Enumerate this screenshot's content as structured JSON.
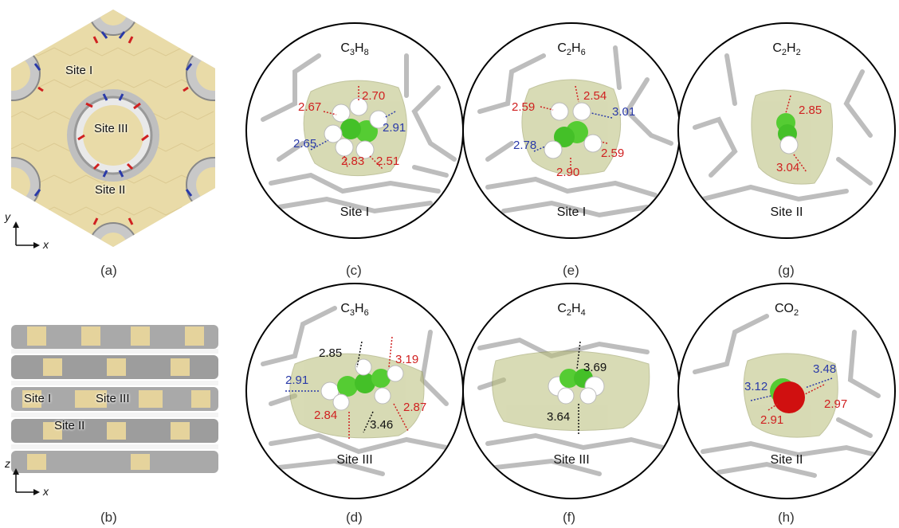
{
  "panels": {
    "a": {
      "caption": "(a)",
      "sites": [
        "Site I",
        "Site III",
        "Site II"
      ],
      "axes": {
        "vertical": "y",
        "horizontal": "x"
      }
    },
    "b": {
      "caption": "(b)",
      "sites": [
        "Site I",
        "Site III",
        "Site II"
      ],
      "axes": {
        "vertical": "z",
        "horizontal": "x"
      }
    },
    "c": {
      "caption": "(c)",
      "molecule": "C3H8",
      "site": "Site I",
      "distances": {
        "d1": "2.67",
        "d2": "2.70",
        "d3": "2.91",
        "d4": "2.65",
        "d5": "2.83",
        "d6": "2.51"
      }
    },
    "d": {
      "caption": "(d)",
      "molecule": "C3H6",
      "site": "Site III",
      "distances": {
        "d1": "2.85",
        "d2": "3.19",
        "d3": "2.91",
        "d4": "2.84",
        "d5": "3.46",
        "d6": "2.87"
      }
    },
    "e": {
      "caption": "(e)",
      "molecule": "C2H6",
      "site": "Site I",
      "distances": {
        "d1": "2.59",
        "d2": "2.54",
        "d3": "3.01",
        "d4": "2.78",
        "d5": "2.90",
        "d6": "2.59"
      }
    },
    "f": {
      "caption": "(f)",
      "molecule": "C2H4",
      "site": "Site III",
      "distances": {
        "d1": "3.69",
        "d2": "3.64"
      }
    },
    "g": {
      "caption": "(g)",
      "molecule": "C2H2",
      "site": "Site II",
      "distances": {
        "d1": "2.85",
        "d2": "3.04"
      }
    },
    "h": {
      "caption": "(h)",
      "molecule": "CO2",
      "site": "Site II",
      "distances": {
        "d1": "3.12",
        "d2": "3.48",
        "d3": "2.97",
        "d4": "2.91"
      }
    }
  },
  "colors": {
    "framework_surface": "#e8d9a6",
    "pore_surface": "#c9c9c9",
    "cage": "#c6c98f",
    "carbon": "#44cc33",
    "hydrogen": "#ffffff",
    "oxygen": "#d01010",
    "nitrogen": "#2a3aa8"
  }
}
